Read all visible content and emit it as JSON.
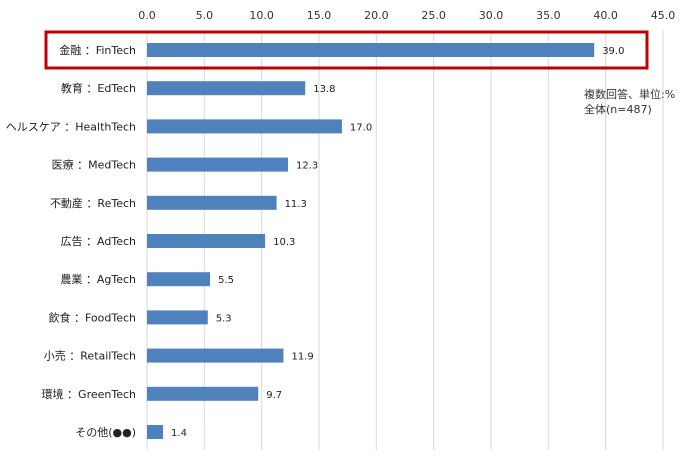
{
  "chart_data": {
    "type": "bar",
    "orientation": "horizontal",
    "categories": [
      "金融 ：FinTech",
      "教育 ：EdTech",
      "ヘルスケア ：HealthTech",
      "医療 ：MedTech",
      "不動産 ：ReTech",
      "広告 ：AdTech",
      "農業 ：AgTech",
      "飲食 ：FoodTech",
      "小売 ：RetailTech",
      "環境 ：GreenTech",
      "その他(●●)"
    ],
    "values": [
      39.0,
      13.8,
      17.0,
      12.3,
      11.3,
      10.3,
      5.5,
      5.3,
      11.9,
      9.7,
      1.4
    ],
    "data_labels": [
      "39.0",
      "13.8",
      "17.0",
      "12.3",
      "11.3",
      "10.3",
      "5.5",
      "5.3",
      "11.9",
      "9.7",
      "1.4"
    ],
    "x_ticks": [
      "0.0",
      "5.0",
      "10.0",
      "15.0",
      "20.0",
      "25.0",
      "30.0",
      "35.0",
      "40.0",
      "45.0"
    ],
    "xlim": [
      0,
      45
    ],
    "x_axis_position": "top",
    "grid": true,
    "highlighted_category": "金融 ：FinTech",
    "annotation": {
      "line1": "複数回答、単位:%",
      "line2": "全体(n=487)"
    }
  },
  "colors": {
    "bar": "#4f81bd",
    "gridline": "#d9d9d9",
    "highlight_box": "#c00000"
  }
}
